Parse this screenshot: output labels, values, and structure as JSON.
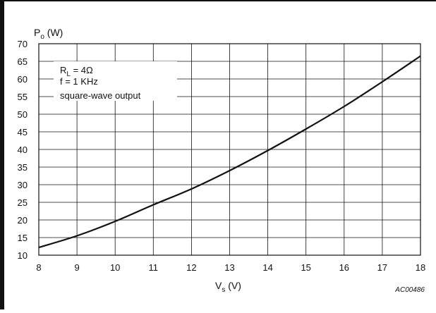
{
  "chart_data": {
    "type": "line",
    "xlabel": {
      "main": "V",
      "sub": "s",
      "unit": " (V)"
    },
    "ylabel": {
      "main": "P",
      "sub": "o",
      "unit": " (W)"
    },
    "xlim": [
      8,
      18
    ],
    "ylim": [
      10,
      70
    ],
    "x_ticks": [
      8,
      9,
      10,
      11,
      12,
      13,
      14,
      15,
      16,
      17,
      18
    ],
    "y_ticks": [
      10,
      15,
      20,
      25,
      30,
      35,
      40,
      45,
      50,
      55,
      60,
      65,
      70
    ],
    "grid": true,
    "series": [
      {
        "x": [
          8,
          9,
          10,
          11,
          12,
          13,
          14,
          15,
          16,
          17,
          18
        ],
        "y": [
          12.2,
          15.5,
          19.6,
          24.3,
          28.8,
          34.0,
          39.7,
          45.8,
          52.2,
          59.2,
          66.5
        ],
        "color": "#111111"
      }
    ],
    "annotation": {
      "lines": [
        {
          "main": "R",
          "sub": "L",
          "rest": " = 4Ω"
        },
        {
          "main": "f = 1 KHz",
          "sub": "",
          "rest": ""
        },
        {
          "main": "square-wave output",
          "sub": "",
          "rest": ""
        }
      ]
    },
    "code": "AC00486"
  }
}
